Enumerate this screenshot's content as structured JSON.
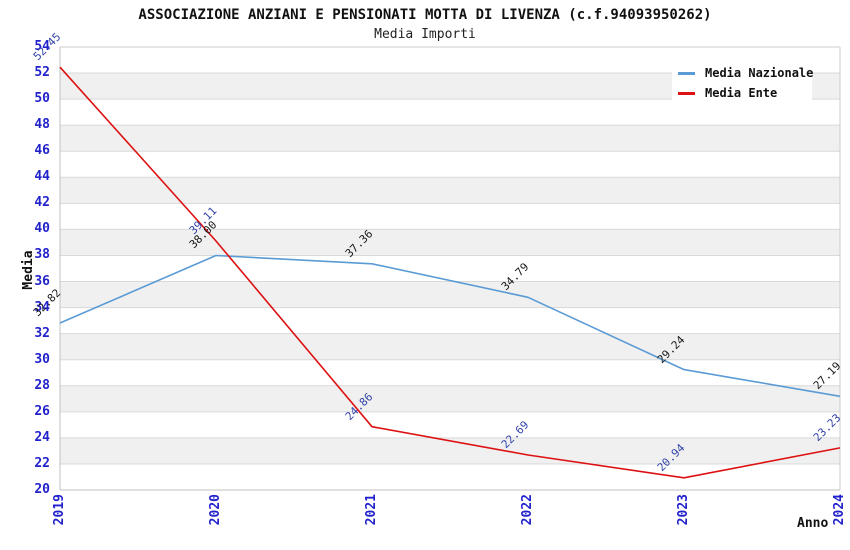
{
  "title": "ASSOCIAZIONE ANZIANI E PENSIONATI MOTTA DI LIVENZA (c.f.94093950262)",
  "subtitle": "Media Importi",
  "chart_data": {
    "type": "line",
    "x": [
      2019,
      2020,
      2021,
      2022,
      2023,
      2024
    ],
    "xlabel": "Anno",
    "ylabel": "Media",
    "ylim": [
      20,
      54
    ],
    "ytick_step": 2,
    "grid": true,
    "banded_background": true,
    "legend_position": "top-right",
    "series": [
      {
        "name": "Media Nazionale",
        "color": "#5b9bd5",
        "label_color": "#1a1a1a",
        "values": [
          32.82,
          38.0,
          37.36,
          34.79,
          29.24,
          27.19
        ]
      },
      {
        "name": "Media Ente",
        "color": "#dd1111",
        "label_color": "#3344aa",
        "values": [
          52.45,
          39.11,
          24.86,
          22.69,
          20.94,
          23.23
        ]
      }
    ]
  },
  "colors": {
    "tick_label": "#2222cc",
    "band_fill": "#f0f0f0",
    "gridline": "#d9d9d9",
    "axis_line": "#c0c0c0",
    "frame_line": "#cccccc",
    "background": "#ffffff"
  }
}
